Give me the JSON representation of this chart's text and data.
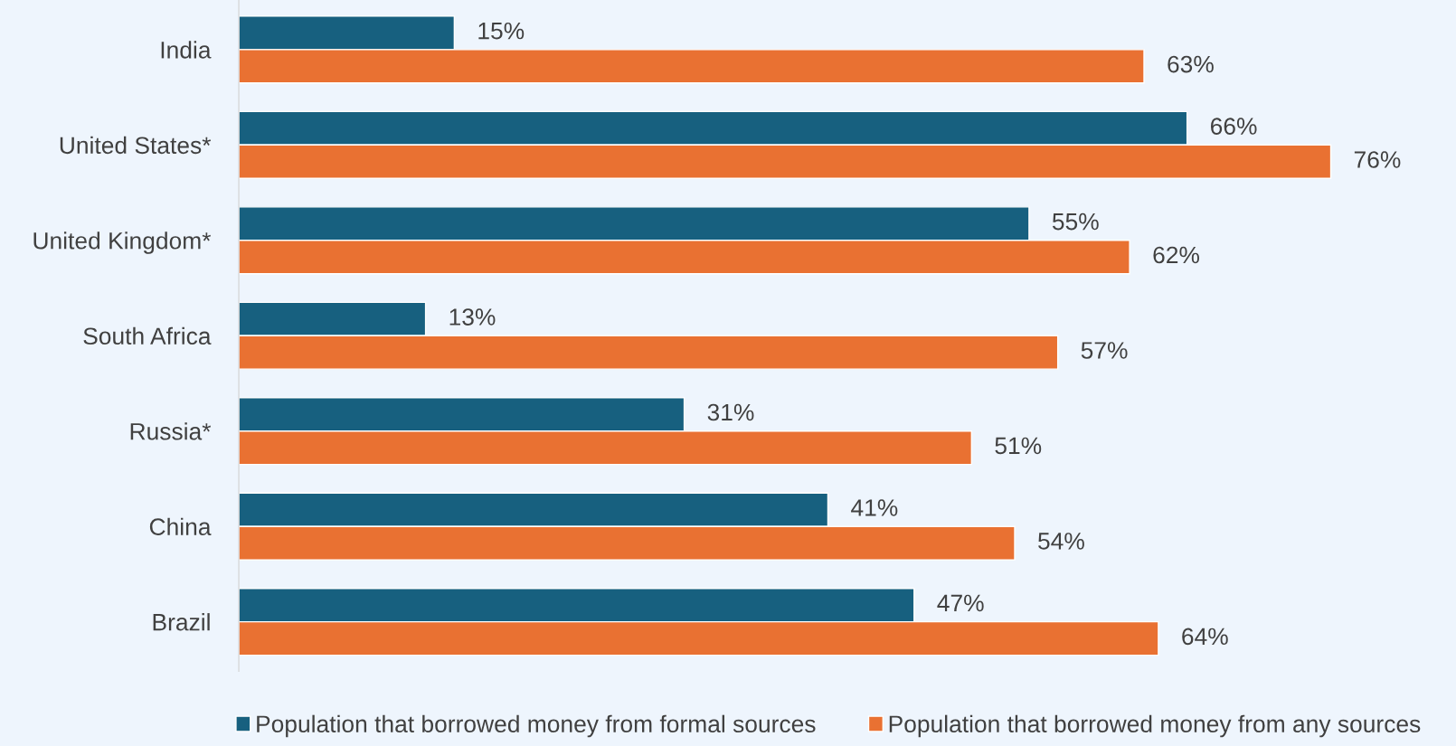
{
  "chart_data": {
    "type": "bar",
    "orientation": "horizontal",
    "categories": [
      "India",
      "United States*",
      "United Kingdom*",
      "South Africa",
      "Russia*",
      "China",
      "Brazil"
    ],
    "series": [
      {
        "name": "Population that borrowed money from formal sources",
        "color": "#17607f",
        "values": [
          15,
          66,
          55,
          13,
          31,
          41,
          47
        ],
        "value_labels": [
          "15%",
          "66%",
          "55%",
          "13%",
          "31%",
          "41%",
          "47%"
        ]
      },
      {
        "name": "Population that borrowed money from any sources",
        "color": "#e97132",
        "values": [
          63,
          76,
          62,
          57,
          51,
          54,
          64
        ],
        "value_labels": [
          "63%",
          "76%",
          "62%",
          "57%",
          "51%",
          "54%",
          "64%"
        ]
      }
    ],
    "tick_labels": "y",
    "grid": false,
    "legend": "bottom"
  }
}
